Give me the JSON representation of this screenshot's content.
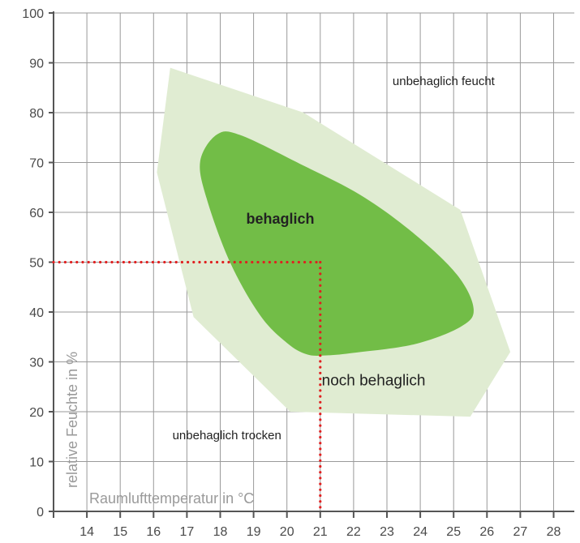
{
  "chart_data": {
    "type": "area",
    "xlabel": "Raumlufttemperatur in °C",
    "ylabel": "relative Feuchte in %",
    "xlim": [
      13,
      28
    ],
    "ylim": [
      0,
      100
    ],
    "x_ticks": [
      14,
      15,
      16,
      17,
      18,
      19,
      20,
      21,
      22,
      23,
      24,
      25,
      26,
      27,
      28
    ],
    "y_ticks": [
      0,
      10,
      20,
      30,
      40,
      50,
      60,
      70,
      80,
      90,
      100
    ],
    "grid": true,
    "regions": [
      {
        "name": "noch behaglich",
        "color": "#e0ecd2",
        "polygon": [
          [
            16.5,
            89
          ],
          [
            20.5,
            80
          ],
          [
            25.2,
            60.5
          ],
          [
            26.7,
            32
          ],
          [
            25.5,
            19
          ],
          [
            20.1,
            20
          ],
          [
            17.2,
            39
          ],
          [
            16.1,
            68
          ]
        ]
      },
      {
        "name": "behaglich",
        "color": "#72bd47",
        "polygon": [
          [
            17.9,
            75.6
          ],
          [
            18.6,
            75.5
          ],
          [
            20.4,
            69.7
          ],
          [
            22.2,
            63.5
          ],
          [
            23.8,
            55.8
          ],
          [
            25.1,
            47.5
          ],
          [
            25.6,
            40.6
          ],
          [
            25.2,
            37
          ],
          [
            23.8,
            33.5
          ],
          [
            22.0,
            31.8
          ],
          [
            21.2,
            31.3
          ],
          [
            20.6,
            31.5
          ],
          [
            20.0,
            33.8
          ],
          [
            19.2,
            39.3
          ],
          [
            18.3,
            49.9
          ],
          [
            17.6,
            62.6
          ],
          [
            17.4,
            70.3
          ]
        ]
      }
    ],
    "annotations": [
      {
        "text": "behaglich",
        "x": 19.8,
        "y": 57.7
      },
      {
        "text": "noch behaglich",
        "x": 22.6,
        "y": 25.3
      },
      {
        "text": "unbehaglich feucht",
        "x": 24.7,
        "y": 85.5
      },
      {
        "text": "unbehaglich trocken",
        "x": 18.2,
        "y": 14.5
      }
    ],
    "reference_point": {
      "x": 21,
      "y": 50,
      "color": "#e02020"
    }
  }
}
